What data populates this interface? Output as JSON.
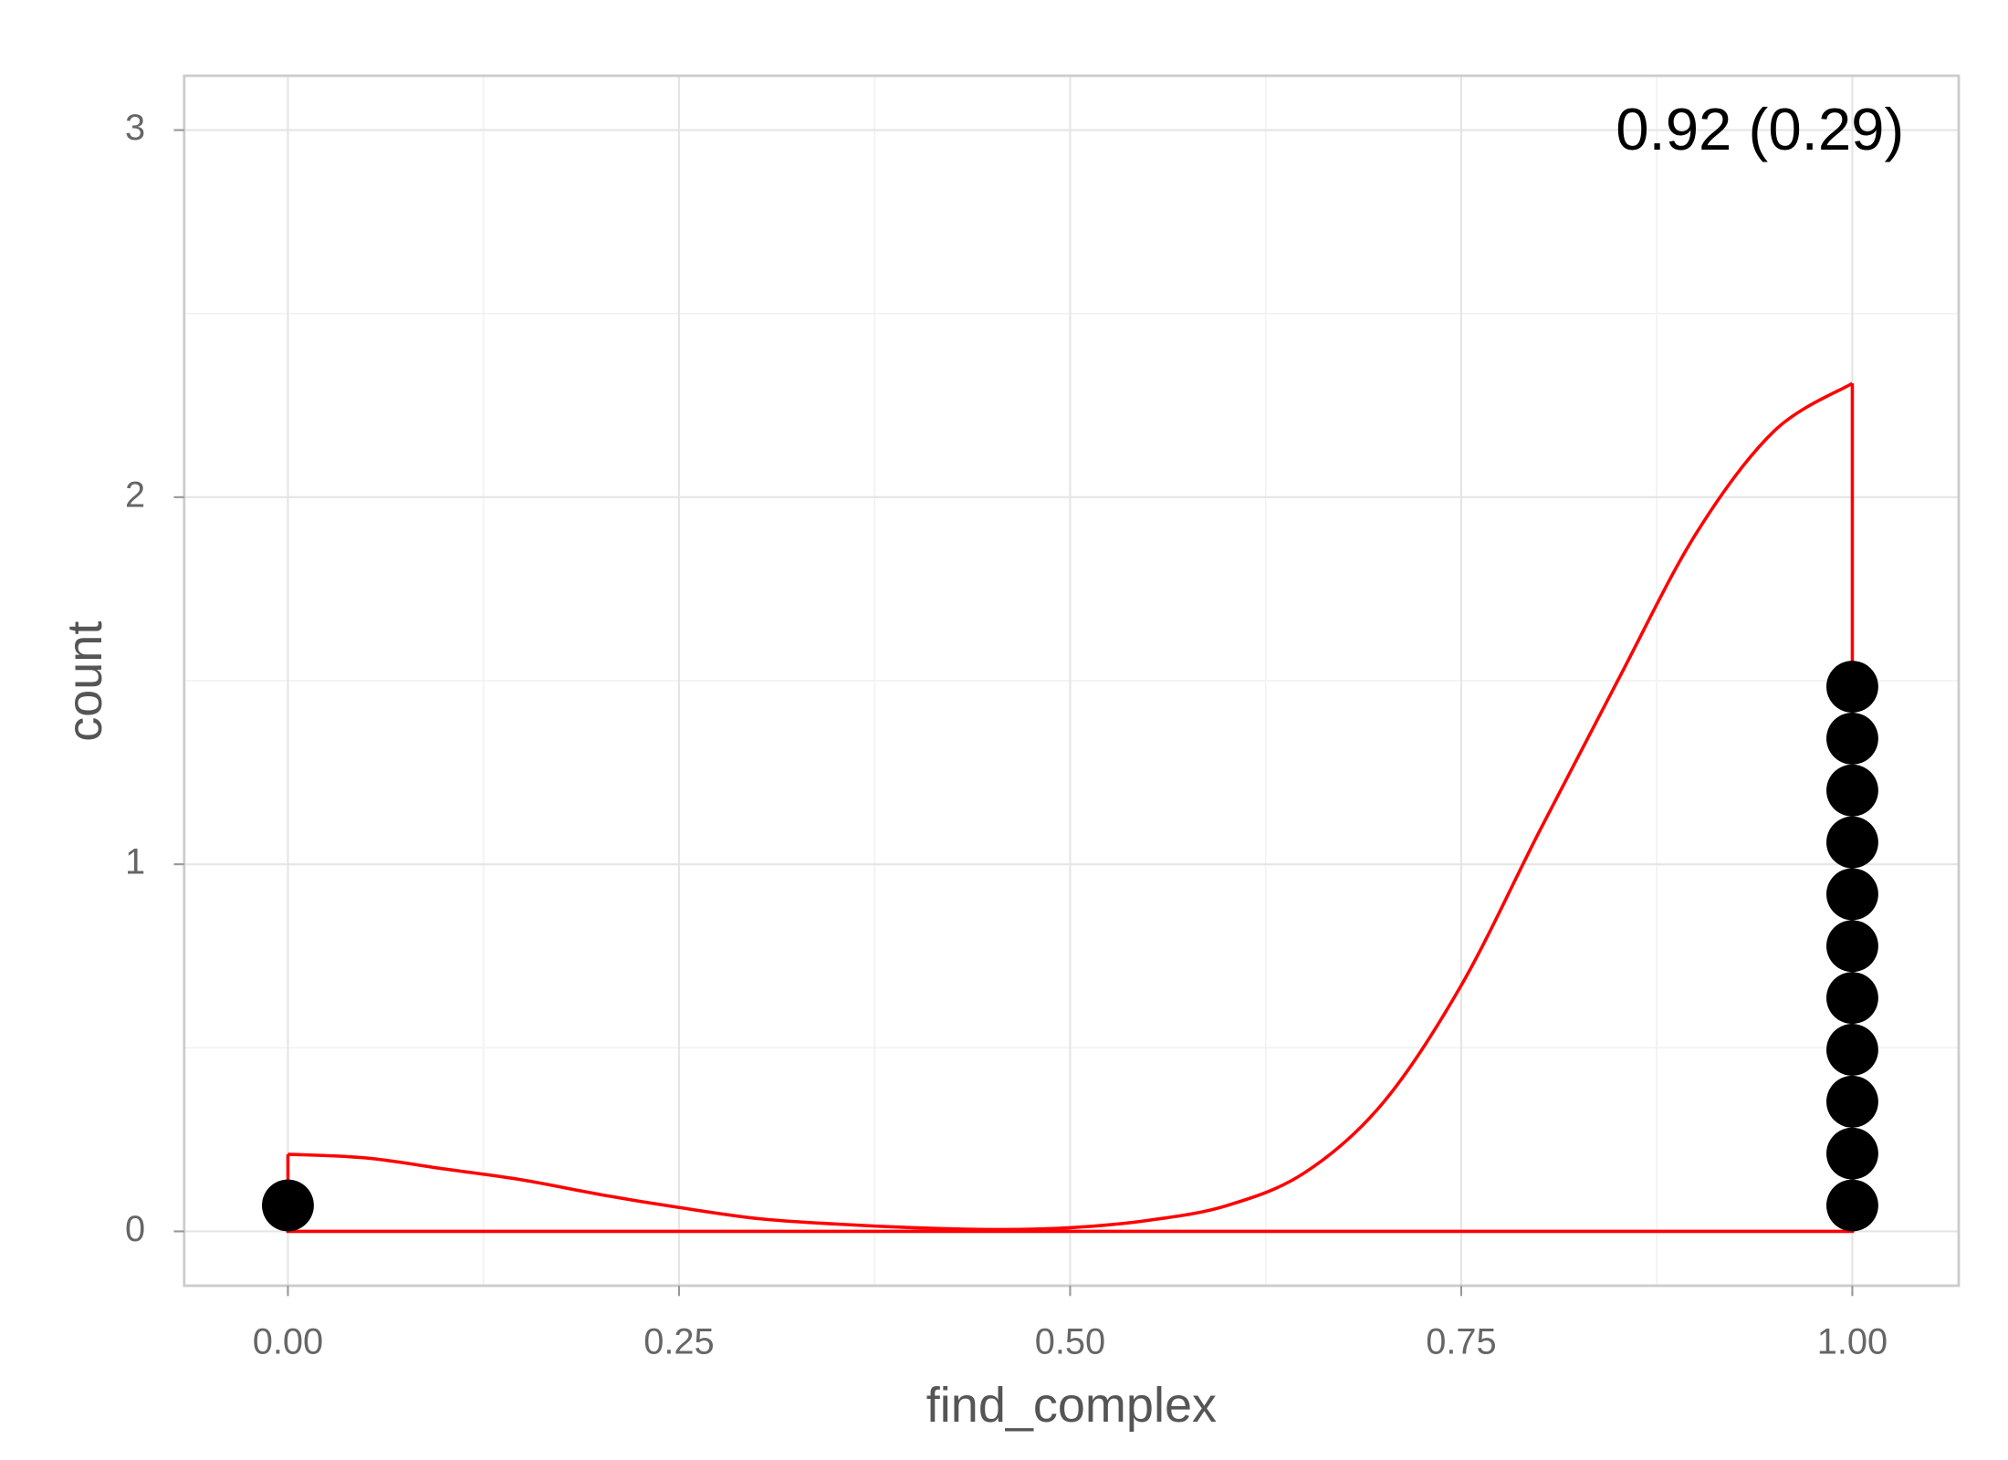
{
  "chart_data": {
    "type": "dotplot",
    "x_label": "find_complex",
    "y_label": "count",
    "annotation": "0.92 (0.29)",
    "dots": {
      "x": [
        0,
        1
      ],
      "counts": [
        1,
        11
      ],
      "color": "#000000"
    },
    "density": {
      "color": "#ff0000",
      "x": [
        0,
        0.05,
        0.1,
        0.15,
        0.2,
        0.25,
        0.3,
        0.35,
        0.4,
        0.45,
        0.5,
        0.55,
        0.6,
        0.65,
        0.7,
        0.75,
        0.8,
        0.85,
        0.9,
        0.95,
        1
      ],
      "y": [
        0.21,
        0.2,
        0.17,
        0.14,
        0.1,
        0.065,
        0.035,
        0.02,
        0.01,
        0.005,
        0.01,
        0.03,
        0.07,
        0.16,
        0.35,
        0.67,
        1.09,
        1.5,
        1.9,
        2.18,
        2.31
      ]
    },
    "xlim": [
      -0.0663,
      1.068
    ],
    "ylim": [
      -0.148,
      3.148
    ],
    "xticks": [
      {
        "value": 0,
        "label": "0.00"
      },
      {
        "value": 0.25,
        "label": "0.25"
      },
      {
        "value": 0.5,
        "label": "0.50"
      },
      {
        "value": 0.75,
        "label": "0.75"
      },
      {
        "value": 1,
        "label": "1.00"
      }
    ],
    "yticks": [
      0,
      1,
      2,
      3
    ],
    "grid": true
  }
}
